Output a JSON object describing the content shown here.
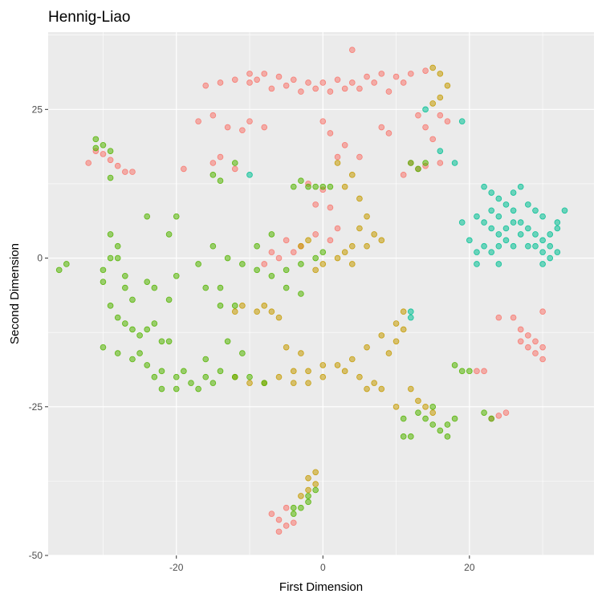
{
  "chart_data": {
    "type": "scatter",
    "title": "Hennig-Liao",
    "xlabel": "First Dimension",
    "ylabel": "Second Dimension",
    "xlim": [
      -37.5,
      37
    ],
    "ylim": [
      -50,
      38
    ],
    "xticks": [
      -20,
      0,
      20
    ],
    "xtick_labels": [
      "-20",
      "0",
      "20"
    ],
    "yticks": [
      -50,
      -25,
      0,
      25
    ],
    "ytick_labels": [
      "-50",
      "-25",
      "0",
      "25"
    ],
    "grid": true,
    "legend": "none",
    "colors": {
      "salmon": "#F8766D",
      "olive": "#C49A00",
      "green": "#53B400",
      "teal": "#00C094",
      "panel": "#EBEBEB",
      "gridline": "#FFFFFF"
    },
    "clusters": [
      {
        "color": "salmon",
        "points": [
          [
            -10,
            31
          ],
          [
            -8,
            31
          ],
          [
            -6,
            30.5
          ],
          [
            -4,
            30
          ],
          [
            -2,
            29.5
          ],
          [
            0,
            29.5
          ],
          [
            2,
            30
          ],
          [
            4,
            29.5
          ],
          [
            6,
            30.5
          ],
          [
            8,
            31
          ],
          [
            10,
            30.5
          ],
          [
            12,
            31
          ],
          [
            14,
            31.5
          ],
          [
            -9,
            30
          ],
          [
            -5,
            29
          ],
          [
            -1,
            28.5
          ],
          [
            3,
            28.5
          ],
          [
            7,
            29.5
          ],
          [
            11,
            29.5
          ],
          [
            -3,
            28
          ],
          [
            1,
            28
          ],
          [
            5,
            28.5
          ],
          [
            -7,
            28.5
          ],
          [
            9,
            28
          ],
          [
            -14,
            29.5
          ],
          [
            -12,
            30
          ],
          [
            -10,
            29.5
          ],
          [
            -16,
            29
          ],
          [
            4,
            35
          ],
          [
            -17,
            23
          ],
          [
            -15,
            24
          ],
          [
            -13,
            22
          ],
          [
            -11,
            21.5
          ],
          [
            -10,
            23
          ],
          [
            -8,
            22
          ],
          [
            0,
            23
          ],
          [
            1,
            21
          ],
          [
            3,
            19
          ],
          [
            5,
            17
          ],
          [
            2,
            17
          ],
          [
            8,
            22
          ],
          [
            9,
            21
          ],
          [
            12,
            16
          ],
          [
            14,
            15.5
          ],
          [
            16,
            16
          ],
          [
            13,
            15
          ],
          [
            11,
            14
          ],
          [
            -15,
            16
          ],
          [
            -14,
            17
          ],
          [
            -12,
            15
          ],
          [
            -19,
            15
          ],
          [
            -30,
            17.5
          ],
          [
            -29,
            16.5
          ],
          [
            -28,
            15.5
          ],
          [
            -27,
            14.5
          ],
          [
            -26,
            14.5
          ],
          [
            -31,
            18
          ],
          [
            -32,
            16
          ],
          [
            -2,
            12.5
          ],
          [
            0,
            11.5
          ],
          [
            -1,
            9
          ],
          [
            1,
            8.5
          ],
          [
            -5,
            3
          ],
          [
            -3,
            2
          ],
          [
            -1,
            4
          ],
          [
            1,
            3
          ],
          [
            -7,
            1
          ],
          [
            -6,
            0
          ],
          [
            -8,
            -1
          ],
          [
            -4,
            1
          ],
          [
            2,
            5
          ],
          [
            14,
            22
          ],
          [
            15,
            20
          ],
          [
            16,
            24
          ],
          [
            13,
            24
          ],
          [
            17,
            23
          ],
          [
            -7,
            -43
          ],
          [
            -6,
            -44
          ],
          [
            -5,
            -45
          ],
          [
            -4,
            -44.5
          ],
          [
            -5,
            -42
          ],
          [
            -6,
            -46
          ],
          [
            24,
            -10
          ],
          [
            26,
            -10
          ],
          [
            27,
            -12
          ],
          [
            28,
            -13
          ],
          [
            29,
            -14
          ],
          [
            30,
            -15
          ],
          [
            30,
            -17
          ],
          [
            29,
            -16
          ],
          [
            28,
            -15
          ],
          [
            27,
            -14
          ],
          [
            30,
            -9
          ],
          [
            21,
            -19
          ],
          [
            22,
            -19
          ],
          [
            23,
            -27
          ],
          [
            24,
            -26.5
          ],
          [
            25,
            -26
          ]
        ]
      },
      {
        "color": "olive",
        "points": [
          [
            15,
            32
          ],
          [
            16,
            31
          ],
          [
            17,
            29
          ],
          [
            16,
            27
          ],
          [
            15,
            26
          ],
          [
            2,
            16
          ],
          [
            4,
            14
          ],
          [
            3,
            12
          ],
          [
            5,
            10
          ],
          [
            6,
            7
          ],
          [
            5,
            5
          ],
          [
            7,
            4
          ],
          [
            4,
            2
          ],
          [
            6,
            2
          ],
          [
            8,
            3
          ],
          [
            2,
            0
          ],
          [
            4,
            -1
          ],
          [
            3,
            1
          ],
          [
            0,
            -1
          ],
          [
            -1,
            -2
          ],
          [
            -3,
            2
          ],
          [
            -2,
            3
          ],
          [
            -8,
            -8
          ],
          [
            -7,
            -9
          ],
          [
            -6,
            -10
          ],
          [
            -12,
            -9
          ],
          [
            -11,
            -8
          ],
          [
            -9,
            -9
          ],
          [
            -5,
            -15
          ],
          [
            -3,
            -16
          ],
          [
            -6,
            -20
          ],
          [
            -4,
            -21
          ],
          [
            -2,
            -19
          ],
          [
            0,
            -20
          ],
          [
            2,
            -18
          ],
          [
            4,
            -17
          ],
          [
            6,
            -15
          ],
          [
            8,
            -13
          ],
          [
            10,
            -11
          ],
          [
            11,
            -9
          ],
          [
            -4,
            -19
          ],
          [
            -2,
            -21
          ],
          [
            0,
            -18
          ],
          [
            3,
            -19
          ],
          [
            5,
            -20
          ],
          [
            7,
            -21
          ],
          [
            9,
            -16
          ],
          [
            10,
            -14
          ],
          [
            11,
            -12
          ],
          [
            12,
            -22
          ],
          [
            13,
            -24
          ],
          [
            14,
            -25
          ],
          [
            15,
            -26
          ],
          [
            10,
            -25
          ],
          [
            8,
            -22
          ],
          [
            6,
            -22
          ],
          [
            -2,
            -37
          ],
          [
            -1,
            -36
          ],
          [
            -1,
            -38
          ],
          [
            -2,
            -39
          ],
          [
            -3,
            -40
          ],
          [
            -10,
            -21
          ],
          [
            -8,
            -21
          ],
          [
            -12,
            -20
          ]
        ]
      },
      {
        "color": "green",
        "points": [
          [
            -31,
            20
          ],
          [
            -30,
            19
          ],
          [
            -29,
            18
          ],
          [
            -31,
            18.5
          ],
          [
            -29,
            13.5
          ],
          [
            -35,
            -1
          ],
          [
            -36,
            -2
          ],
          [
            -30,
            -2
          ],
          [
            -30,
            -4
          ],
          [
            -29,
            0
          ],
          [
            -29,
            4
          ],
          [
            -28,
            2
          ],
          [
            -28,
            0
          ],
          [
            -27,
            -3
          ],
          [
            -29,
            -8
          ],
          [
            -28,
            -10
          ],
          [
            -27,
            -11
          ],
          [
            -26,
            -12
          ],
          [
            -25,
            -13
          ],
          [
            -24,
            -12
          ],
          [
            -23,
            -11
          ],
          [
            -22,
            -14
          ],
          [
            -27,
            -5
          ],
          [
            -26,
            -7
          ],
          [
            -23,
            -5
          ],
          [
            -21,
            -7
          ],
          [
            -30,
            -15
          ],
          [
            -28,
            -16
          ],
          [
            -26,
            -17
          ],
          [
            -24,
            -18
          ],
          [
            -22,
            -19
          ],
          [
            -20,
            -20
          ],
          [
            -18,
            -21
          ],
          [
            -16,
            -20
          ],
          [
            -14,
            -19
          ],
          [
            -12,
            -20
          ],
          [
            -10,
            -20
          ],
          [
            -8,
            -21
          ],
          [
            -19,
            -19
          ],
          [
            -17,
            -22
          ],
          [
            -15,
            -21
          ],
          [
            -20,
            -22
          ],
          [
            -16,
            -17
          ],
          [
            -13,
            -14
          ],
          [
            -11,
            -16
          ],
          [
            -14,
            -8
          ],
          [
            -12,
            -8
          ],
          [
            -16,
            -5
          ],
          [
            -14,
            -5
          ],
          [
            -17,
            -1
          ],
          [
            -15,
            2
          ],
          [
            -13,
            0
          ],
          [
            -11,
            -1
          ],
          [
            -9,
            -2
          ],
          [
            -7,
            -3
          ],
          [
            -5,
            -5
          ],
          [
            -3,
            -6
          ],
          [
            -7,
            4
          ],
          [
            -9,
            2
          ],
          [
            -5,
            -2
          ],
          [
            -3,
            -1
          ],
          [
            -1,
            0
          ],
          [
            0,
            1
          ],
          [
            -2,
            12
          ],
          [
            -1,
            12
          ],
          [
            0,
            12
          ],
          [
            1,
            12
          ],
          [
            -3,
            13
          ],
          [
            -4,
            12
          ],
          [
            -15,
            14
          ],
          [
            -14,
            13
          ],
          [
            -12,
            16
          ],
          [
            12,
            16
          ],
          [
            13,
            15
          ],
          [
            14,
            16
          ],
          [
            14,
            -27
          ],
          [
            15,
            -28
          ],
          [
            16,
            -29
          ],
          [
            17,
            -30
          ],
          [
            13,
            -26
          ],
          [
            11,
            -30
          ],
          [
            12,
            -30
          ],
          [
            11,
            -27
          ],
          [
            15,
            -25
          ],
          [
            17,
            -28
          ],
          [
            18,
            -27
          ],
          [
            18,
            -18
          ],
          [
            19,
            -19
          ],
          [
            20,
            -19
          ],
          [
            22,
            -26
          ],
          [
            23,
            -27
          ],
          [
            -2,
            -41
          ],
          [
            -3,
            -42
          ],
          [
            -4,
            -43
          ],
          [
            -2,
            -40
          ],
          [
            -1,
            -39
          ],
          [
            -4,
            -42
          ],
          [
            -22,
            -22
          ],
          [
            -23,
            -20
          ],
          [
            -21,
            -14
          ],
          [
            -25,
            -16
          ],
          [
            -24,
            -4
          ],
          [
            -24,
            7
          ],
          [
            -20,
            7
          ],
          [
            -21,
            4
          ],
          [
            -20,
            -3
          ]
        ]
      },
      {
        "color": "teal",
        "points": [
          [
            22,
            12
          ],
          [
            23,
            11
          ],
          [
            24,
            10
          ],
          [
            25,
            9
          ],
          [
            26,
            8
          ],
          [
            21,
            7
          ],
          [
            22,
            6
          ],
          [
            23,
            5
          ],
          [
            24,
            4
          ],
          [
            25,
            3
          ],
          [
            26,
            2
          ],
          [
            27,
            6
          ],
          [
            28,
            5
          ],
          [
            29,
            4
          ],
          [
            30,
            3
          ],
          [
            31,
            2
          ],
          [
            32,
            5
          ],
          [
            33,
            8
          ],
          [
            32,
            6
          ],
          [
            31,
            4
          ],
          [
            30,
            7
          ],
          [
            29,
            8
          ],
          [
            28,
            9
          ],
          [
            27,
            12
          ],
          [
            26,
            11
          ],
          [
            22,
            2
          ],
          [
            23,
            1
          ],
          [
            24,
            -1
          ],
          [
            21,
            1
          ],
          [
            20,
            3
          ],
          [
            19,
            6
          ],
          [
            21,
            -1
          ],
          [
            27,
            4
          ],
          [
            26,
            6
          ],
          [
            31,
            0
          ],
          [
            30,
            1
          ],
          [
            29,
            2
          ],
          [
            25,
            5
          ],
          [
            24,
            7
          ],
          [
            23,
            8
          ],
          [
            28,
            2
          ],
          [
            30,
            -1
          ],
          [
            32,
            1
          ],
          [
            24,
            2
          ],
          [
            12,
            -9
          ],
          [
            12,
            -10
          ],
          [
            18,
            16
          ],
          [
            19,
            23
          ],
          [
            16,
            18
          ],
          [
            14,
            25
          ],
          [
            -10,
            14
          ]
        ]
      }
    ]
  }
}
